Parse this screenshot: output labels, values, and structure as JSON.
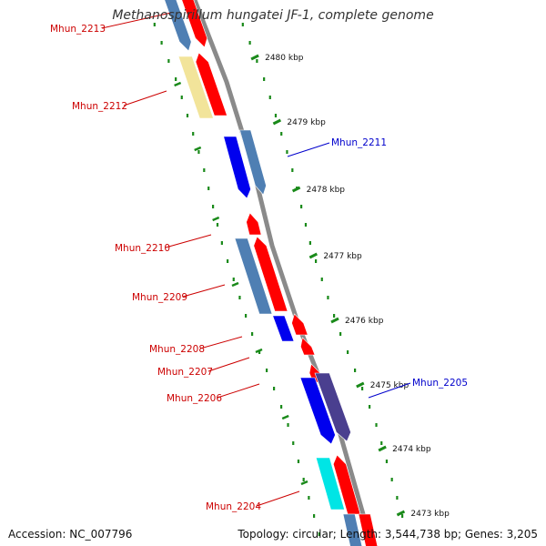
{
  "title": "Methanospirillum hungatei JF-1, complete genome",
  "footer": {
    "accession": "Accession: NC_007796",
    "topology": "Topology: circular; Length: 3,544,738 bp; Genes: 3,205"
  },
  "colors": {
    "backbone": "#8a8a8a",
    "tick": "#1a8a1a",
    "red": "#ff0000",
    "steel_blue": "#4f7fb3",
    "blue": "#0000ee",
    "khaki": "#f2e49a",
    "dark_slate": "#4a3f8f",
    "cyan": "#00e5e5",
    "red_label": "#cc0000",
    "blue_label": "#0000cc"
  },
  "kbp_labels": [
    "2480 kbp",
    "2479 kbp",
    "2478 kbp",
    "2477 kbp",
    "2476 kbp",
    "2475 kbp",
    "2474 kbp",
    "2473 kbp"
  ],
  "genes": [
    {
      "name": "Mhun_2213",
      "side": "left",
      "label_color": "red_label"
    },
    {
      "name": "Mhun_2212",
      "side": "left",
      "label_color": "red_label"
    },
    {
      "name": "Mhun_2211",
      "side": "right",
      "label_color": "blue_label"
    },
    {
      "name": "Mhun_2210",
      "side": "left",
      "label_color": "red_label"
    },
    {
      "name": "Mhun_2209",
      "side": "left",
      "label_color": "red_label"
    },
    {
      "name": "Mhun_2208",
      "side": "left",
      "label_color": "red_label"
    },
    {
      "name": "Mhun_2207",
      "side": "left",
      "label_color": "red_label"
    },
    {
      "name": "Mhun_2206",
      "side": "left",
      "label_color": "red_label"
    },
    {
      "name": "Mhun_2205",
      "side": "right",
      "label_color": "blue_label"
    },
    {
      "name": "Mhun_2204",
      "side": "left",
      "label_color": "red_label"
    }
  ]
}
